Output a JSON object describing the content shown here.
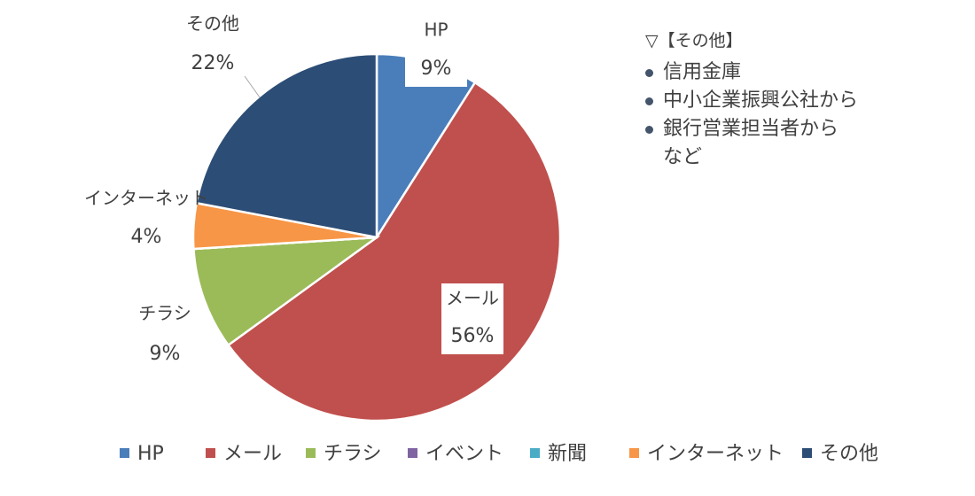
{
  "chart_data": {
    "type": "pie",
    "categories": [
      "HP",
      "メール",
      "チラシ",
      "イベント",
      "新聞",
      "インターネット",
      "その他"
    ],
    "values": [
      9,
      56,
      9,
      0,
      0,
      4,
      22
    ],
    "value_labels": [
      "9%",
      "56%",
      "9%",
      null,
      null,
      "4%",
      "22%"
    ],
    "colors": [
      "#4a7ebb",
      "#c0504d",
      "#9bbb59",
      "#8064a2",
      "#4bacc6",
      "#f79646",
      "#2c4d75"
    ],
    "legend": "bottom",
    "annotation": {
      "title": "▽【その他】",
      "items": [
        "信用金庫",
        "中小企業振興公社から",
        "銀行営業担当者から\nなど"
      ]
    }
  }
}
